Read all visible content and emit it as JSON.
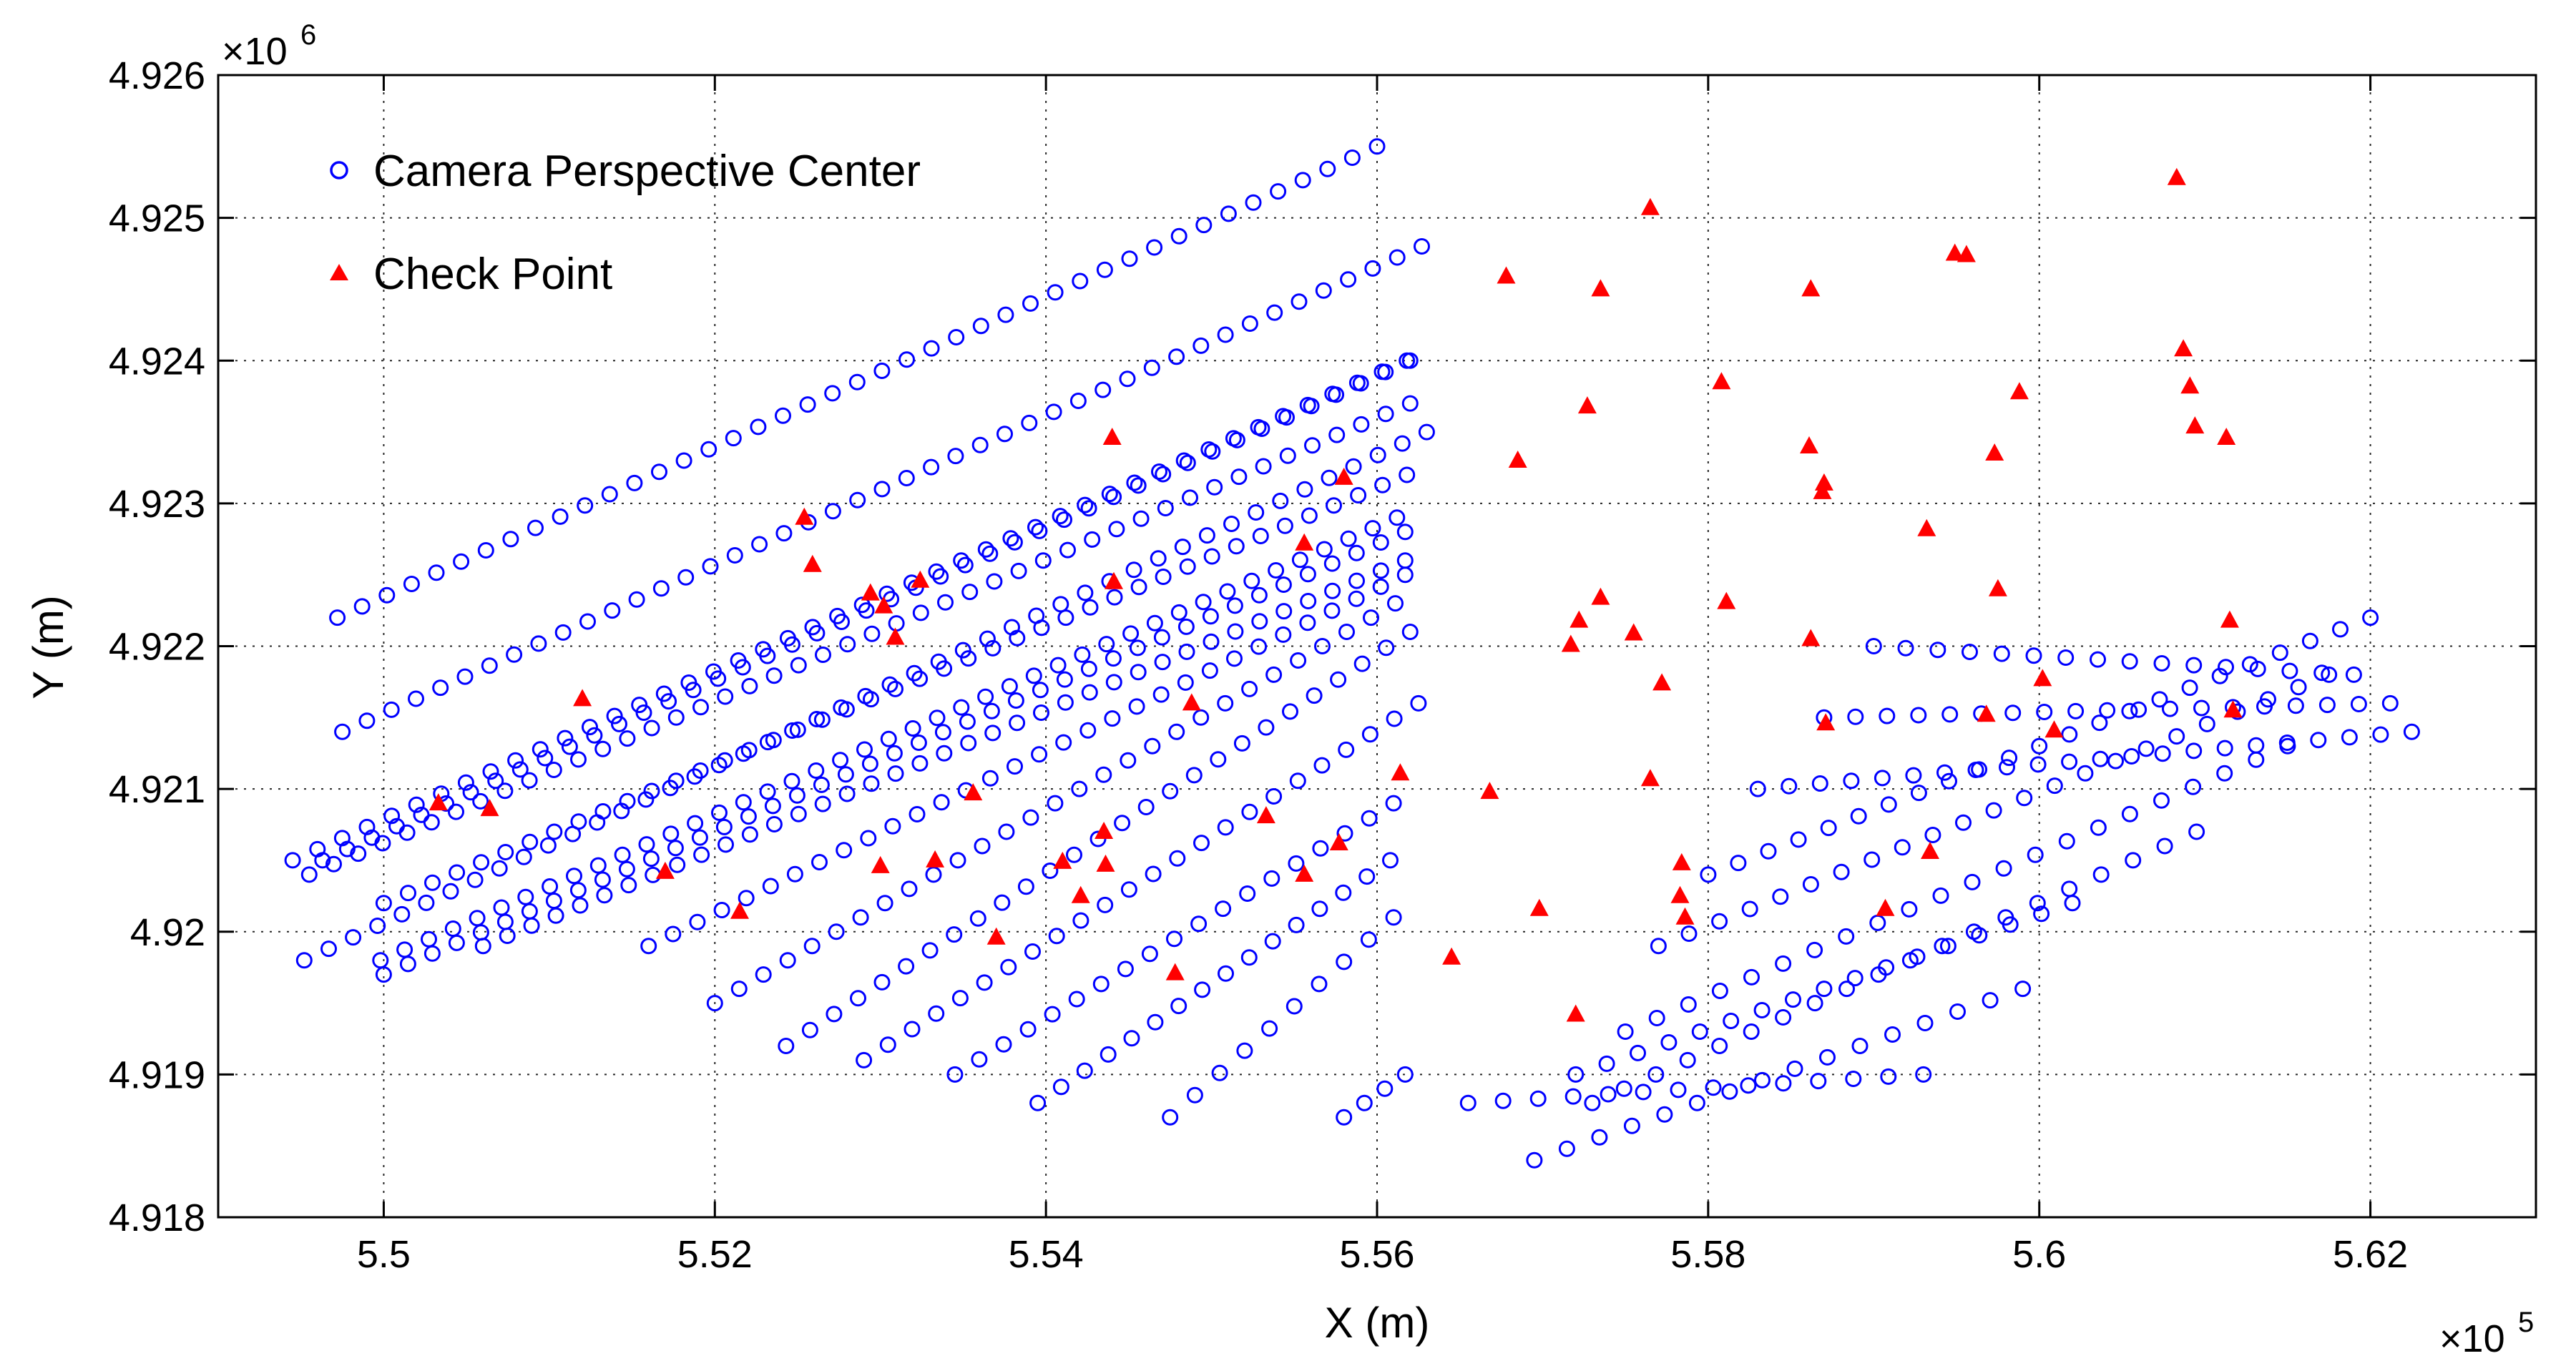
{
  "chart_data": {
    "type": "scatter",
    "title": "",
    "xlabel": "X (m)",
    "ylabel": "Y (m)",
    "x_exponent_label": "×10",
    "x_exponent_power": "5",
    "y_exponent_label": "×10",
    "y_exponent_power": "6",
    "xlim": [
      5.49,
      5.63
    ],
    "ylim": [
      4.918,
      4.926
    ],
    "x_ticks": [
      5.5,
      5.52,
      5.54,
      5.56,
      5.58,
      5.6,
      5.62
    ],
    "x_tick_labels": [
      "5.5",
      "5.52",
      "5.54",
      "5.56",
      "5.58",
      "5.6",
      "5.62"
    ],
    "y_ticks": [
      4.918,
      4.919,
      4.92,
      4.921,
      4.922,
      4.923,
      4.924,
      4.925,
      4.926
    ],
    "y_tick_labels": [
      "4.918",
      "4.919",
      "4.92",
      "4.921",
      "4.922",
      "4.923",
      "4.924",
      "4.925",
      "4.926"
    ],
    "grid": true,
    "legend_position": "top-left",
    "colors": {
      "camera": "#0000ff",
      "check": "#ff0000"
    },
    "series": [
      {
        "name": "Camera Perspective Center",
        "marker": "open-circle",
        "color": "#0000ff",
        "strips": [
          {
            "start": [
              5.4972,
              4.9222
            ],
            "end": [
              5.56,
              4.9255
            ],
            "count": 43
          },
          {
            "start": [
              5.4975,
              4.9214
            ],
            "end": [
              5.5627,
              4.9248
            ],
            "count": 45
          },
          {
            "start": [
              5.4963,
              4.9205
            ],
            "end": [
              5.562,
              4.924
            ],
            "count": 45
          },
          {
            "start": [
              5.4952,
              4.9198
            ],
            "end": [
              5.563,
              4.9235
            ],
            "count": 47
          },
          {
            "start": [
              5.5,
              4.9197
            ],
            "end": [
              5.5617,
              4.9228
            ],
            "count": 43
          },
          {
            "start": [
              5.4945,
              4.9205
            ],
            "end": [
              5.5618,
              4.924
            ],
            "count": 46
          },
          {
            "start": [
              5.4955,
              4.9204
            ],
            "end": [
              5.562,
              4.9237
            ],
            "count": 46
          },
          {
            "start": [
              5.5,
              4.9202
            ],
            "end": [
              5.5618,
              4.9232
            ],
            "count": 43
          },
          {
            "start": [
              5.4998,
              4.9198
            ],
            "end": [
              5.5612,
              4.9229
            ],
            "count": 43
          },
          {
            "start": [
              5.506,
              4.9199
            ],
            "end": [
              5.5617,
              4.9226
            ],
            "count": 39
          },
          {
            "start": [
              5.516,
              4.9199
            ],
            "end": [
              5.5617,
              4.9225
            ],
            "count": 32
          },
          {
            "start": [
              5.52,
              4.9195
            ],
            "end": [
              5.5611,
              4.9223
            ],
            "count": 29
          },
          {
            "start": [
              5.5243,
              4.9192
            ],
            "end": [
              5.562,
              4.9221
            ],
            "count": 27
          },
          {
            "start": [
              5.529,
              4.9191
            ],
            "end": [
              5.5625,
              4.9216
            ],
            "count": 24
          },
          {
            "start": [
              5.5345,
              4.919
            ],
            "end": [
              5.561,
              4.9209
            ],
            "count": 19
          },
          {
            "start": [
              5.5395,
              4.9188
            ],
            "end": [
              5.5608,
              4.9205
            ],
            "count": 16
          },
          {
            "start": [
              5.5475,
              4.9187
            ],
            "end": [
              5.561,
              4.9201
            ],
            "count": 10
          },
          {
            "start": [
              5.558,
              4.9187
            ],
            "end": [
              5.5617,
              4.919
            ],
            "count": 4
          },
          {
            "start": [
              5.5655,
              4.9188
            ],
            "end": [
              5.593,
              4.919
            ],
            "count": 14
          },
          {
            "start": [
              5.5695,
              4.9184
            ],
            "end": [
              5.599,
              4.9196
            ],
            "count": 16
          },
          {
            "start": [
              5.572,
              4.919
            ],
            "end": [
              5.602,
              4.9202
            ],
            "count": 17
          },
          {
            "start": [
              5.573,
              4.9188
            ],
            "end": [
              5.6095,
              4.9207
            ],
            "count": 20
          },
          {
            "start": [
              5.575,
              4.9193
            ],
            "end": [
              5.615,
              4.9213
            ],
            "count": 22
          },
          {
            "start": [
              5.577,
              4.9199
            ],
            "end": [
              5.6175,
              4.9218
            ],
            "count": 23
          },
          {
            "start": [
              5.58,
              4.9204
            ],
            "end": [
              5.62,
              4.9222
            ],
            "count": 23
          },
          {
            "start": [
              5.583,
              4.921
            ],
            "end": [
              5.6225,
              4.9214
            ],
            "count": 22
          },
          {
            "start": [
              5.587,
              4.9215
            ],
            "end": [
              5.6212,
              4.9216
            ],
            "count": 19
          },
          {
            "start": [
              5.59,
              4.922
            ],
            "end": [
              5.619,
              4.9218
            ],
            "count": 16
          }
        ]
      },
      {
        "name": "Check Point",
        "marker": "filled-triangle",
        "color": "#ff0000",
        "points": [
          [
            5.5033,
            4.9209
          ],
          [
            5.5064,
            4.92086
          ],
          [
            5.512,
            4.92163
          ],
          [
            5.517,
            4.92042
          ],
          [
            5.5215,
            4.92014
          ],
          [
            5.5254,
            4.9229
          ],
          [
            5.5259,
            4.92257
          ],
          [
            5.5294,
            4.92237
          ],
          [
            5.53,
            4.92046
          ],
          [
            5.5302,
            4.92228
          ],
          [
            5.5309,
            4.92206
          ],
          [
            5.5324,
            4.92246
          ],
          [
            5.5333,
            4.9205
          ],
          [
            5.5356,
            4.92097
          ],
          [
            5.537,
            4.91996
          ],
          [
            5.541,
            4.92049
          ],
          [
            5.5421,
            4.92025
          ],
          [
            5.5435,
            4.9207
          ],
          [
            5.5436,
            4.92047
          ],
          [
            5.544,
            4.92346
          ],
          [
            5.5441,
            4.92245
          ],
          [
            5.5478,
            4.91971
          ],
          [
            5.5488,
            4.9216
          ],
          [
            5.5533,
            4.92081
          ],
          [
            5.5556,
            4.92272
          ],
          [
            5.5556,
            4.9204
          ],
          [
            5.558,
            4.92318
          ],
          [
            5.5577,
            4.92062
          ],
          [
            5.5614,
            4.92111
          ],
          [
            5.5645,
            4.91982
          ],
          [
            5.5668,
            4.92098
          ],
          [
            5.5678,
            4.92459
          ],
          [
            5.5685,
            4.9233
          ],
          [
            5.5698,
            4.92016
          ],
          [
            5.5717,
            4.92201
          ],
          [
            5.572,
            4.91942
          ],
          [
            5.5722,
            4.92218
          ],
          [
            5.5727,
            4.92368
          ],
          [
            5.5735,
            4.9245
          ],
          [
            5.5735,
            4.92234
          ],
          [
            5.5755,
            4.92209
          ],
          [
            5.5765,
            4.92507
          ],
          [
            5.5765,
            4.92107
          ],
          [
            5.5772,
            4.92174
          ],
          [
            5.5783,
            4.92025
          ],
          [
            5.5784,
            4.92048
          ],
          [
            5.5786,
            4.9201
          ],
          [
            5.5808,
            4.92385
          ],
          [
            5.5811,
            4.92231
          ],
          [
            5.5861,
            4.9234
          ],
          [
            5.5862,
            4.9245
          ],
          [
            5.5862,
            4.92205
          ],
          [
            5.5869,
            4.92308
          ],
          [
            5.587,
            4.92314
          ],
          [
            5.5871,
            4.92146
          ],
          [
            5.5907,
            4.92016
          ],
          [
            5.5932,
            4.92282
          ],
          [
            5.5934,
            4.92056
          ],
          [
            5.5949,
            4.92475
          ],
          [
            5.5956,
            4.92474
          ],
          [
            5.5968,
            4.92152
          ],
          [
            5.5973,
            4.92335
          ],
          [
            5.5975,
            4.9224
          ],
          [
            5.5988,
            4.92378
          ],
          [
            5.6002,
            4.92177
          ],
          [
            5.6009,
            4.92141
          ],
          [
            5.6083,
            4.92528
          ],
          [
            5.6087,
            4.92408
          ],
          [
            5.6091,
            4.92382
          ],
          [
            5.6094,
            4.92354
          ],
          [
            5.6113,
            4.92346
          ],
          [
            5.6115,
            4.92218
          ],
          [
            5.6117,
            4.92155
          ]
        ]
      }
    ],
    "legend": [
      {
        "label": "Camera Perspective Center",
        "marker": "open-circle",
        "color": "#0000ff"
      },
      {
        "label": "Check Point",
        "marker": "filled-triangle",
        "color": "#ff0000"
      }
    ]
  }
}
